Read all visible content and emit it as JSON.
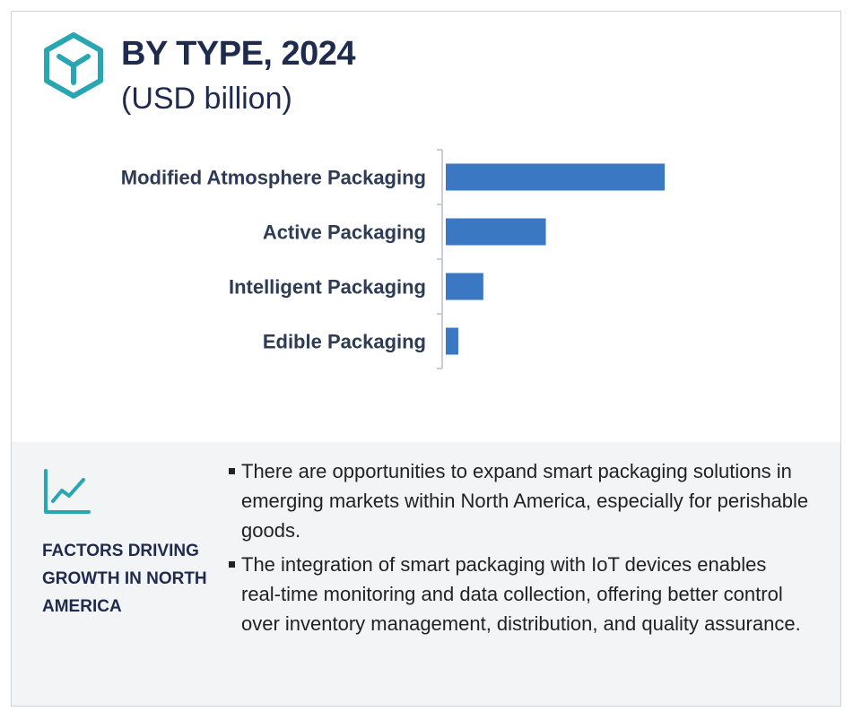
{
  "header": {
    "title": "BY TYPE, 2024",
    "subtitle": "(USD billion)",
    "icon": "cube-icon"
  },
  "colors": {
    "bar": "#3a78c3",
    "title": "#1f2b4d",
    "accent_icon": "#2aa6b3",
    "panel_bg": "#f3f4f6"
  },
  "chart_data": {
    "type": "bar",
    "orientation": "horizontal",
    "title": "BY TYPE, 2024",
    "subtitle": "(USD billion)",
    "categories": [
      "Modified Atmosphere Packaging",
      "Active Packaging",
      "Intelligent Packaging",
      "Edible Packaging"
    ],
    "values": [
      10.5,
      4.8,
      1.8,
      0.6
    ],
    "xlim": [
      0,
      10.5
    ],
    "grid": false,
    "value_labels": false,
    "axis_ticks_labeled": false
  },
  "factors": {
    "icon": "trend-line-icon",
    "title": "FACTORS DRIVING GROWTH IN NORTH AMERICA",
    "bullets": [
      "There are opportunities to expand smart packaging solutions in emerging markets within North America, especially for perishable goods.",
      "The integration of smart packaging with IoT devices enables real-time monitoring and data collection, offering better control over inventory management, distribution, and quality assurance."
    ]
  }
}
